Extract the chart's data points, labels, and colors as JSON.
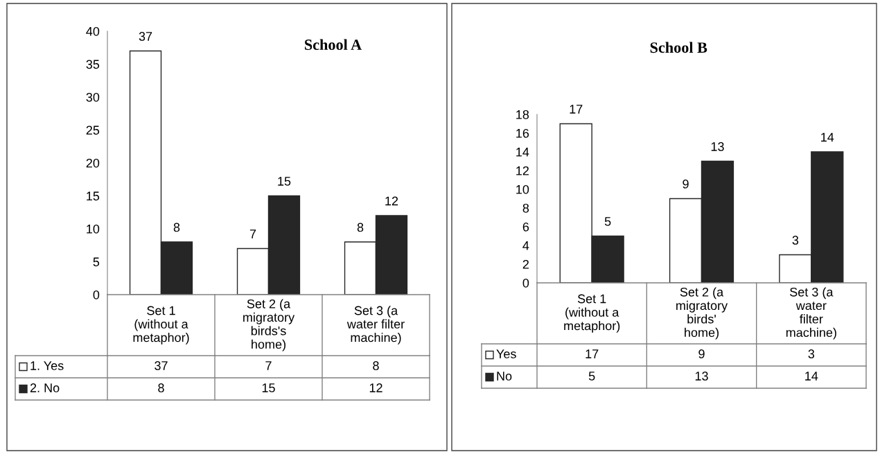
{
  "chart_data": [
    {
      "type": "bar",
      "title": "School A",
      "categories": [
        "Set 1\n(without a\nmetaphor)",
        "Set 2 (a\nmigratory\nbirds's\nhome)",
        "Set 3 (a\nwater filter\nmachine)"
      ],
      "series": [
        {
          "color": "#ffffff",
          "values": [
            37,
            7,
            8
          ]
        },
        {
          "color": "#262626",
          "values": [
            8,
            15,
            12
          ]
        }
      ],
      "ylim": [
        0,
        40
      ],
      "yticks": [
        0,
        5,
        10,
        15,
        20,
        25,
        30,
        35,
        40
      ],
      "data_labels": true,
      "grid": false
    },
    {
      "type": "other",
      "series": [
        {
          "name": "1. Yes",
          "color": "#ffffff"
        },
        {
          "name": "2. No",
          "color": "#262626"
        }
      ],
      "annotations": [
        "37",
        "7",
        "8",
        "8",
        "15",
        "12"
      ],
      "legend": "bottom"
    },
    {
      "type": "bar",
      "title": "School B",
      "categories": [
        "Set 1\n(without a\nmetaphor)",
        "Set 2 (a\nmigratory\nbirds'\nhome)",
        "Set 3 (a\nwater\nfilter\nmachine)"
      ],
      "series": [
        {
          "color": "#ffffff",
          "values": [
            17,
            9,
            3
          ]
        },
        {
          "color": "#262626",
          "values": [
            5,
            13,
            14
          ]
        }
      ],
      "ylim": [
        0,
        18
      ],
      "yticks": [
        0,
        2,
        4,
        6,
        8,
        10,
        12,
        14,
        16,
        18
      ],
      "data_labels": true,
      "grid": false
    },
    {
      "type": "other",
      "series": [
        {
          "name": "Yes",
          "color": "#ffffff"
        },
        {
          "name": "No",
          "color": "#262626"
        }
      ],
      "annotations": [
        "17",
        "9",
        "3",
        "5",
        "13",
        "14"
      ],
      "legend": "bottom"
    }
  ]
}
